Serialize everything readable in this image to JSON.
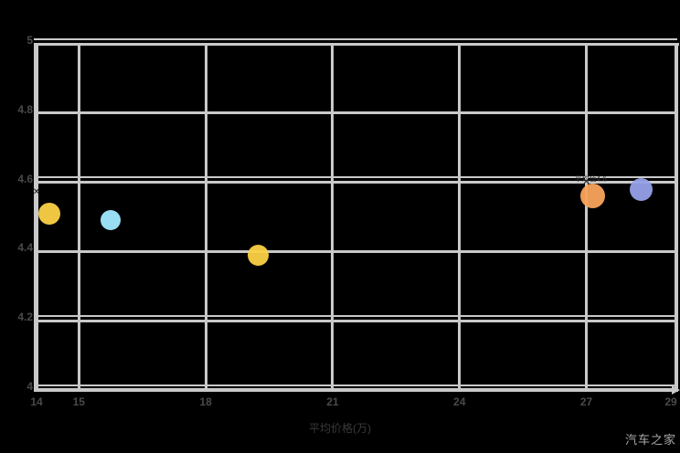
{
  "watermark": {
    "text": "汽车之家"
  },
  "chart_data": {
    "type": "scatter",
    "title": "",
    "xlabel": "平均价格(万)",
    "ylabel": "",
    "x_axis": {
      "min": 14,
      "max": 29.15,
      "tick_values": [
        14,
        15,
        18,
        21,
        24,
        27,
        29
      ],
      "tick_labels": [
        "14",
        "15",
        "18",
        "21",
        "24",
        "27",
        "29"
      ]
    },
    "y_axis": {
      "min": 4,
      "max": 5,
      "tick_values": [
        5,
        4.8,
        4.6,
        4.4,
        4.2,
        4
      ],
      "tick_labels": [
        "5",
        "4.8",
        "4.6",
        "4.4",
        "4.2",
        "4"
      ]
    },
    "grid": true,
    "gridline_values_x": [
      15,
      18,
      21,
      24,
      27
    ],
    "gridline_values_y": [
      4.8,
      4.6,
      4.4,
      4.2
    ],
    "double_line_values_y": [
      5,
      4.6,
      4.2,
      4
    ],
    "legend": "none",
    "points": [
      {
        "name": "point-yellow-1",
        "x": 14.3,
        "y": 4.51,
        "r": 12,
        "color": "#fbd146",
        "marker": "circle"
      },
      {
        "name": "point-cyan",
        "x": 15.75,
        "y": 4.49,
        "r": 11,
        "color": "#a0e9ff",
        "marker": "circle"
      },
      {
        "name": "point-yellow-2",
        "x": 19.25,
        "y": 4.39,
        "r": 11.5,
        "color": "#fbd146",
        "marker": "circle"
      },
      {
        "name": "point-orange",
        "x": 27.15,
        "y": 4.56,
        "r": 13.5,
        "color": "#f9a45b",
        "marker": "circle"
      },
      {
        "name": "point-periwinkle",
        "x": 28.3,
        "y": 4.58,
        "r": 12.5,
        "color": "#96a0e8",
        "marker": "circle"
      },
      {
        "name": "point-x-left",
        "x": 14.0,
        "y": 4.57,
        "color": "#151515",
        "marker": "x",
        "glyph": "✕"
      },
      {
        "name": "point-x-right",
        "x": 27.0,
        "y": 4.6,
        "color": "#151515",
        "marker": "x",
        "glyph": "✕"
      }
    ],
    "annotation": {
      "text": "平均值4.6",
      "x": 27.1,
      "y": 4.61,
      "color": "#2e2e2e"
    },
    "colors": {
      "background": "#000000",
      "grid": "#c9c9c9",
      "tick_label": "#4a4a4a",
      "axis_title": "#3a3a3a",
      "watermark": "#a9a9a9"
    }
  }
}
